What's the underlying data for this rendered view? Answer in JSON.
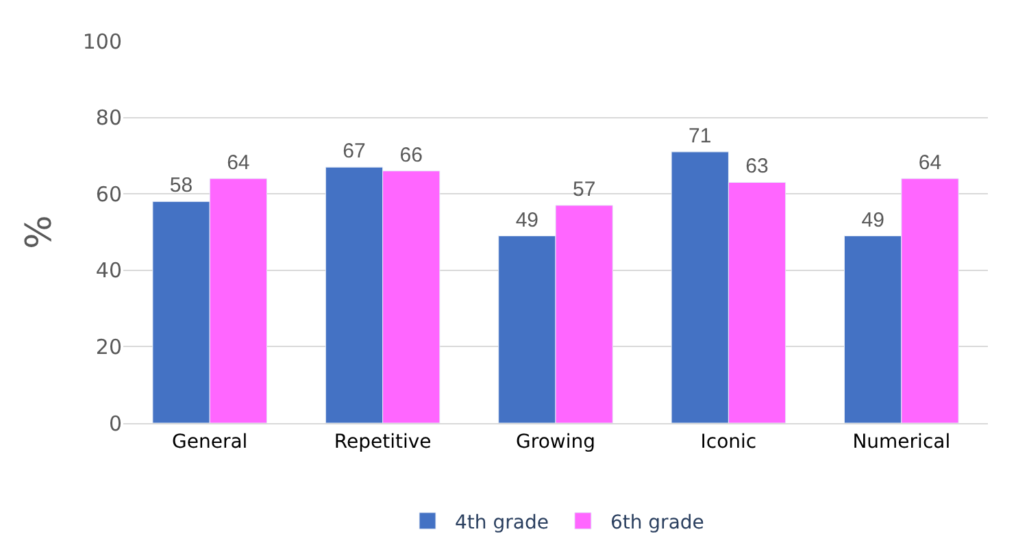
{
  "chart_data": {
    "type": "bar",
    "categories": [
      "General",
      "Repetitive",
      "Growing",
      "Iconic",
      "Numerical"
    ],
    "series": [
      {
        "name": "4th grade",
        "color": "#4472c4",
        "values": [
          58,
          67,
          49,
          71,
          49
        ]
      },
      {
        "name": "6th grade",
        "color": "#ff66ff",
        "values": [
          64,
          66,
          57,
          63,
          64
        ]
      }
    ],
    "ylabel": "%",
    "ylim": [
      0,
      100
    ],
    "yticks": [
      0,
      20,
      40,
      60,
      80,
      100
    ],
    "grid": "y",
    "legend": "bottom",
    "data_labels": true
  }
}
